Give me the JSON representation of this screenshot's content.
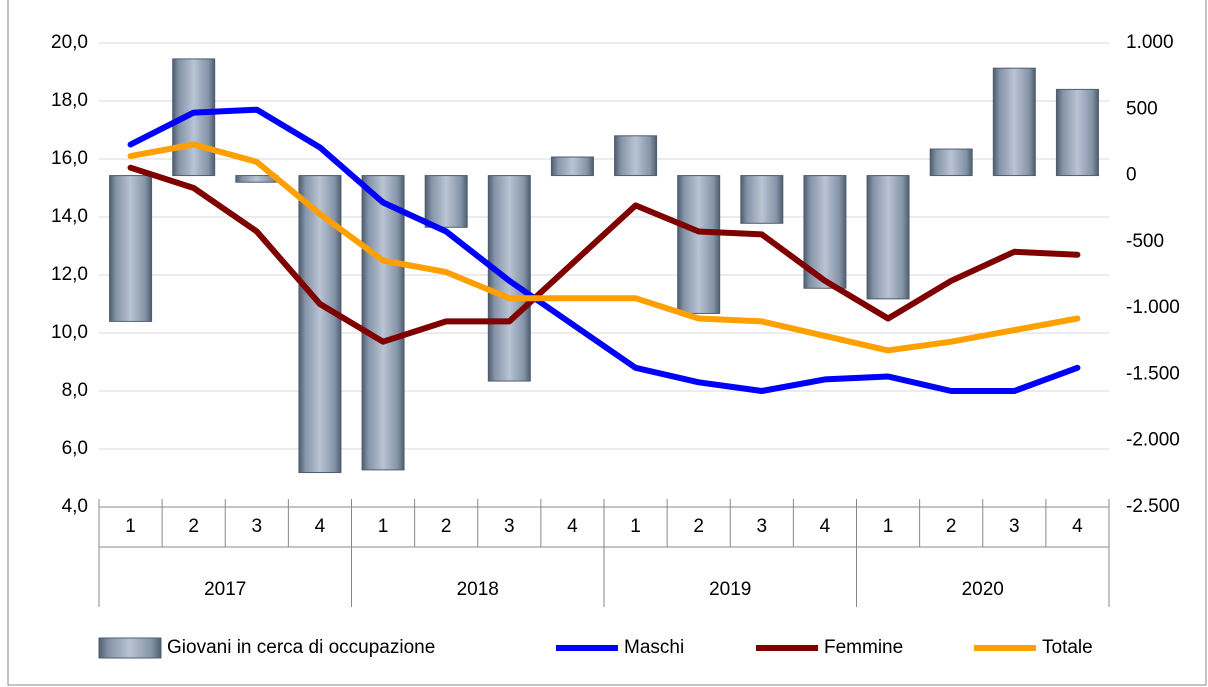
{
  "chart_data": {
    "type": "bar-line",
    "categories": [
      "1",
      "2",
      "3",
      "4",
      "1",
      "2",
      "3",
      "4",
      "1",
      "2",
      "3",
      "4",
      "1",
      "2",
      "3",
      "4"
    ],
    "years": [
      "2017",
      "2018",
      "2019",
      "2020"
    ],
    "series": [
      {
        "name": "Giovani in cerca di occupazione",
        "type": "bar",
        "axis": "y2",
        "color": "#8a98ac",
        "values": [
          -1100,
          880,
          -50,
          -2240,
          -2220,
          -390,
          -1550,
          140,
          300,
          -1040,
          -360,
          -850,
          -930,
          200,
          810,
          650
        ]
      },
      {
        "name": "Maschi",
        "type": "line",
        "color": "#0000ff",
        "values": [
          16.5,
          17.6,
          17.7,
          16.4,
          14.5,
          13.5,
          11.8,
          10.3,
          8.8,
          8.3,
          8.0,
          8.4,
          8.5,
          8.0,
          8.0,
          8.8
        ]
      },
      {
        "name": "Femmine",
        "type": "line",
        "color": "#7f0000",
        "values": [
          15.7,
          15.0,
          13.5,
          11.0,
          9.7,
          10.4,
          10.4,
          12.4,
          14.4,
          13.5,
          13.4,
          11.8,
          10.5,
          11.8,
          12.8,
          12.7
        ]
      },
      {
        "name": "Totale",
        "type": "line",
        "color": "#ffa000",
        "values": [
          16.1,
          16.5,
          15.9,
          14.1,
          12.5,
          12.1,
          11.2,
          11.2,
          11.2,
          10.5,
          10.4,
          9.9,
          9.4,
          9.7,
          10.1,
          10.5
        ]
      }
    ],
    "ylim": [
      4,
      20
    ],
    "yticks": [
      {
        "value": 4,
        "label": "4,0"
      },
      {
        "value": 6,
        "label": "6,0"
      },
      {
        "value": 8,
        "label": "8,0"
      },
      {
        "value": 10,
        "label": "10,0"
      },
      {
        "value": 12,
        "label": "12,0"
      },
      {
        "value": 14,
        "label": "14,0"
      },
      {
        "value": 16,
        "label": "16,0"
      },
      {
        "value": 18,
        "label": "18,0"
      },
      {
        "value": 20,
        "label": "20,0"
      }
    ],
    "y2lim": [
      -2500,
      1000
    ],
    "y2ticks": [
      {
        "value": -2500,
        "label": "-2.500"
      },
      {
        "value": -2000,
        "label": "-2.000"
      },
      {
        "value": -1500,
        "label": "-1.500"
      },
      {
        "value": -1000,
        "label": "-1.000"
      },
      -500,
      0,
      500,
      {
        "value": 1000,
        "label": "1.000"
      }
    ],
    "grid": true,
    "legend": "bottom"
  }
}
